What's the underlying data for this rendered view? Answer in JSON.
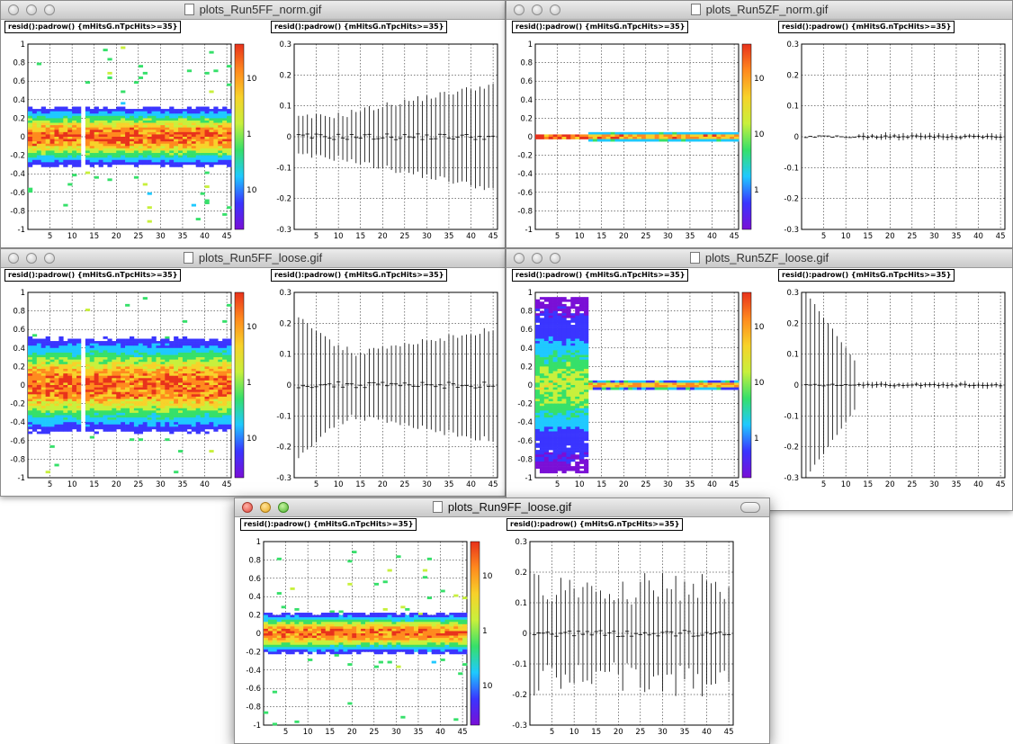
{
  "windows": {
    "w1": {
      "title": "plots_Run5FF_norm.gif",
      "label_left": "resid():padrow() {mHitsG.nTpcHits>=35}",
      "label_right": "resid():padrow() {mHitsG.nTpcHits>=35}"
    },
    "w2": {
      "title": "plots_Run5ZF_norm.gif",
      "label_left": "resid():padrow() {mHitsG.nTpcHits>=35}",
      "label_right": "resid():padrow() {mHitsG.nTpcHits>=35}"
    },
    "w3": {
      "title": "plots_Run5FF_loose.gif",
      "label_left": "resid():padrow() {mHitsG.nTpcHits>=35}",
      "label_right": "resid():padrow() {mHitsG.nTpcHits>=35}"
    },
    "w4": {
      "title": "plots_Run5ZF_loose.gif",
      "label_left": "resid():padrow() {mHitsG.nTpcHits>=35}",
      "label_right": "resid():padrow() {mHitsG.nTpcHits>=35}"
    },
    "w5": {
      "title": "plots_Run9FF_loose.gif",
      "label_left": "resid():padrow() {mHitsG.nTpcHits>=35}",
      "label_right": "resid():padrow() {mHitsG.nTpcHits>=35}"
    }
  },
  "axes": {
    "x_ticks": [
      "5",
      "10",
      "15",
      "20",
      "25",
      "30",
      "35",
      "40",
      "45"
    ],
    "heat_y_ticks": [
      "1",
      "0.8",
      "0.6",
      "0.4",
      "0.2",
      "0",
      "-0.2",
      "-0.4",
      "-0.6",
      "-0.8",
      "-1"
    ],
    "prof_y_ticks": [
      "0.3",
      "0.2",
      "0.1",
      "0",
      "-0.1",
      "-0.2",
      "-0.3"
    ]
  },
  "colorbars": {
    "w1": [
      "10",
      "1",
      "10"
    ],
    "w2": [
      "10",
      "10",
      "1"
    ],
    "w3": [
      "10",
      "1",
      "10"
    ],
    "w4": [
      "10",
      "10",
      "1"
    ],
    "w5": [
      "10",
      "1",
      "10"
    ]
  },
  "icons": {
    "close": "close-button",
    "minimize": "minimize-button",
    "zoom": "zoom-button",
    "document": "document-icon",
    "toolbar": "toolbar-toggle-icon"
  },
  "colors": {
    "palette": [
      "#7a0fd6",
      "#3a35ff",
      "#1fc9ff",
      "#36e06a",
      "#c8f03c",
      "#f7d22a",
      "#ff8a1e",
      "#e8321c"
    ]
  }
}
